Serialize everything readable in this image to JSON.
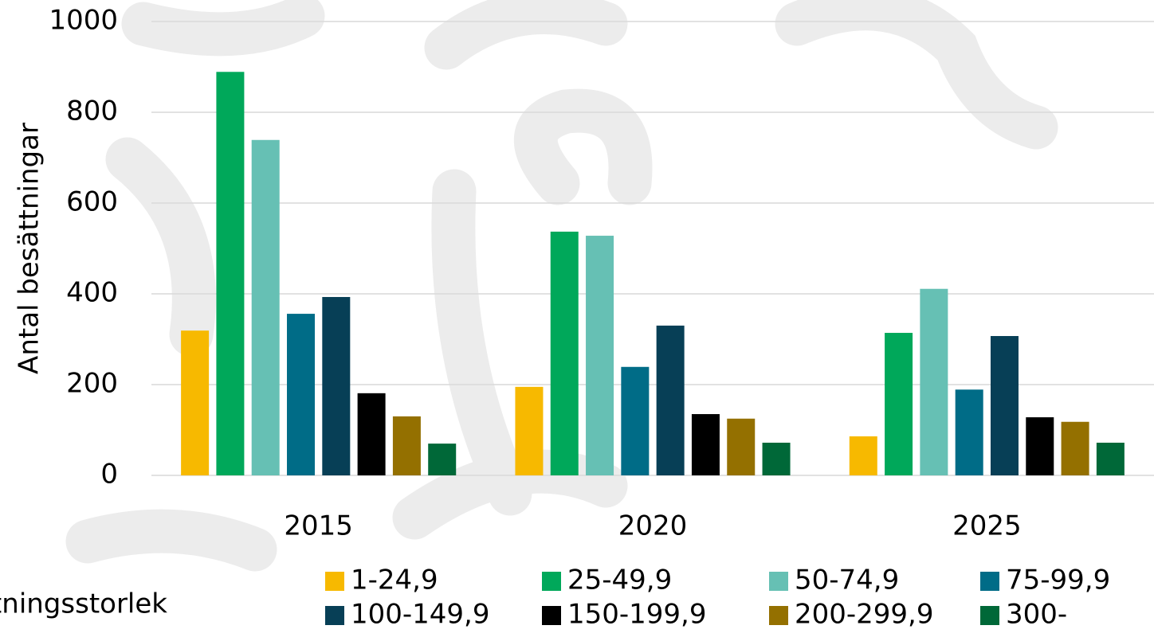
{
  "chart_data": {
    "type": "bar",
    "y_axis_label": "Antal besättningar",
    "legend_title": "Besättningsstorlek",
    "categories": [
      "2015",
      "2020",
      "2025"
    ],
    "series": [
      {
        "name": "1-24,9",
        "color": "#f7b900",
        "values": [
          319,
          195,
          86
        ]
      },
      {
        "name": "25-49,9",
        "color": "#00a85a",
        "values": [
          889,
          537,
          314
        ]
      },
      {
        "name": "50-74,9",
        "color": "#66c0b4",
        "values": [
          739,
          528,
          411
        ]
      },
      {
        "name": "75-99,9",
        "color": "#006c87",
        "values": [
          356,
          239,
          189
        ]
      },
      {
        "name": "100-149,9",
        "color": "#073f56",
        "values": [
          393,
          330,
          307
        ]
      },
      {
        "name": "150-199,9",
        "color": "#000000",
        "values": [
          181,
          135,
          128
        ]
      },
      {
        "name": "200-299,9",
        "color": "#947000",
        "values": [
          130,
          125,
          118
        ]
      },
      {
        "name": "300-",
        "color": "#006838",
        "values": [
          70,
          72,
          72
        ]
      }
    ],
    "ylim": [
      0,
      1000
    ],
    "yticks": [
      0,
      200,
      400,
      600,
      800,
      1000
    ],
    "grid": true,
    "legend": "bottom"
  }
}
